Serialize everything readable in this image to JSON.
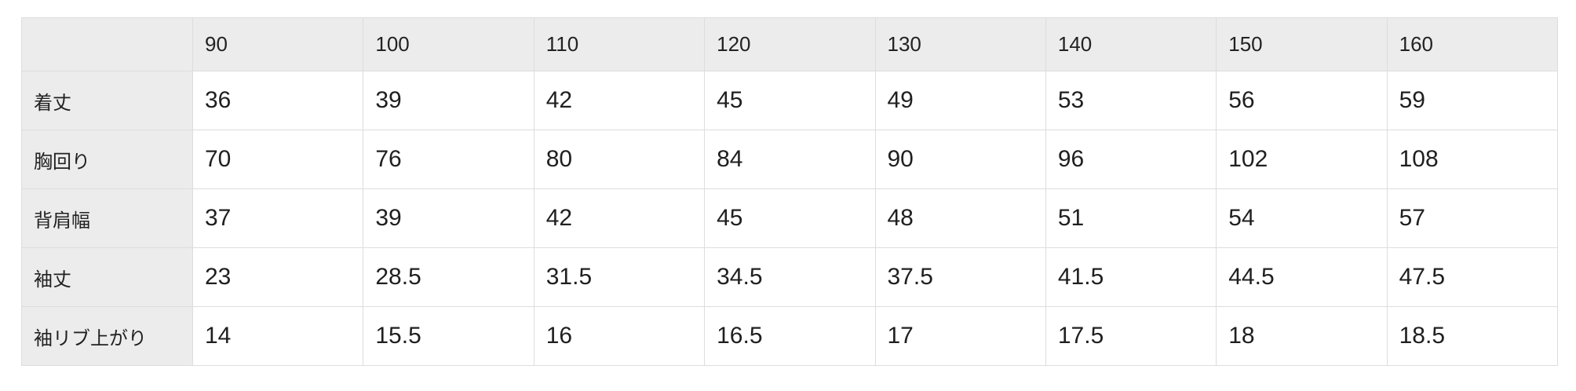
{
  "table": {
    "name": "size-spec-table",
    "corner_label": "",
    "columns": [
      "90",
      "100",
      "110",
      "120",
      "130",
      "140",
      "150",
      "160"
    ],
    "rows": [
      {
        "label": "着丈",
        "values": [
          "36",
          "39",
          "42",
          "45",
          "49",
          "53",
          "56",
          "59"
        ]
      },
      {
        "label": "胸回り",
        "values": [
          "70",
          "76",
          "80",
          "84",
          "90",
          "96",
          "102",
          "108"
        ]
      },
      {
        "label": "背肩幅",
        "values": [
          "37",
          "39",
          "42",
          "45",
          "48",
          "51",
          "54",
          "57"
        ]
      },
      {
        "label": "袖丈",
        "values": [
          "23",
          "28.5",
          "31.5",
          "34.5",
          "37.5",
          "41.5",
          "44.5",
          "47.5"
        ]
      },
      {
        "label": "袖リブ上がり",
        "values": [
          "14",
          "15.5",
          "16",
          "16.5",
          "17",
          "17.5",
          "18",
          "18.5"
        ]
      }
    ],
    "colors": {
      "header_background": "#ececec",
      "border": "#dddddd",
      "text": "#222222",
      "body_background": "#ffffff"
    }
  }
}
